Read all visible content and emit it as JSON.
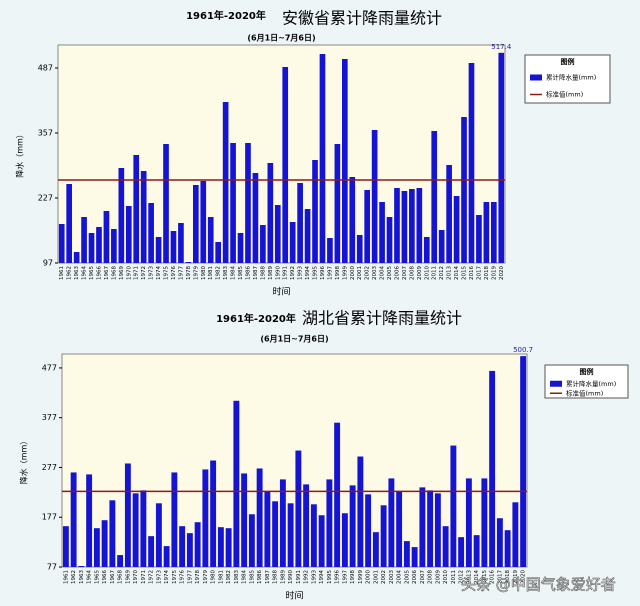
{
  "chart_data": [
    {
      "type": "bar",
      "period_label": "1961年-2020年",
      "title": "安徽省累计降雨量统计",
      "subtitle": "(6月1日~7月6日)",
      "y_label": "降水（mm）",
      "x_label": "时间",
      "legend_title": "图例",
      "categories": [
        "1961",
        "1962",
        "1963",
        "1964",
        "1965",
        "1966",
        "1967",
        "1968",
        "1969",
        "1970",
        "1971",
        "1972",
        "1973",
        "1974",
        "1975",
        "1976",
        "1977",
        "1978",
        "1979",
        "1980",
        "1981",
        "1982",
        "1983",
        "1984",
        "1985",
        "1986",
        "1987",
        "1988",
        "1989",
        "1990",
        "1991",
        "1992",
        "1993",
        "1994",
        "1995",
        "1996",
        "1997",
        "1998",
        "1999",
        "2000",
        "2001",
        "2002",
        "2003",
        "2004",
        "2005",
        "2006",
        "2007",
        "2008",
        "2009",
        "2010",
        "2011",
        "2012",
        "2013",
        "2014",
        "2015",
        "2016",
        "2017",
        "2018",
        "2019",
        "2020"
      ],
      "series": [
        {
          "name": "累计降水量(mm)",
          "color": "#1414d2",
          "values": [
            175,
            255,
            119,
            189,
            157,
            169,
            201,
            165,
            287,
            211,
            313,
            281,
            217,
            149,
            335,
            161,
            177,
            99,
            253,
            261,
            189,
            139,
            419,
            337,
            157,
            337,
            277,
            173,
            297,
            213,
            489,
            179,
            257,
            205,
            303,
            515,
            147,
            335,
            505,
            269,
            153,
            243,
            363,
            219,
            189,
            247,
            241,
            245,
            247,
            149,
            361,
            163,
            293,
            231,
            389,
            497,
            193,
            219,
            219,
            517.4
          ]
        }
      ],
      "reference": {
        "name": "标准值(mm)",
        "value": 263,
        "color": "#8b1a1a"
      },
      "ylim": [
        97,
        533
      ],
      "yticks": [
        97,
        227,
        357,
        487
      ]
    },
    {
      "type": "bar",
      "period_label": "1961年-2020年",
      "title": "湖北省累计降雨量统计",
      "subtitle": "(6月1日~7月6日)",
      "y_label": "降水（mm）",
      "x_label": "时间",
      "legend_title": "图例",
      "categories": [
        "1961",
        "1962",
        "1963",
        "1964",
        "1965",
        "1966",
        "1967",
        "1968",
        "1969",
        "1970",
        "1971",
        "1972",
        "1973",
        "1974",
        "1975",
        "1976",
        "1977",
        "1978",
        "1979",
        "1980",
        "1981",
        "1982",
        "1983",
        "1984",
        "1985",
        "1986",
        "1987",
        "1988",
        "1989",
        "1990",
        "1991",
        "1992",
        "1993",
        "1994",
        "1995",
        "1996",
        "1997",
        "1998",
        "1999",
        "2000",
        "2001",
        "2002",
        "2003",
        "2004",
        "2005",
        "2006",
        "2007",
        "2008",
        "2009",
        "2010",
        "2011",
        "2012",
        "2013",
        "2014",
        "2015",
        "2016",
        "2017",
        "2018",
        "2019",
        "2020"
      ],
      "series": [
        {
          "name": "累计降水量(mm)",
          "color": "#1414d2",
          "values": [
            159,
            267,
            79,
            263,
            155,
            171,
            211,
            101,
            285,
            225,
            231,
            139,
            205,
            119,
            267,
            159,
            145,
            167,
            273,
            291,
            157,
            155,
            411,
            265,
            183,
            275,
            229,
            209,
            253,
            205,
            311,
            243,
            203,
            181,
            253,
            367,
            185,
            241,
            299,
            223,
            147,
            201,
            255,
            229,
            129,
            117,
            237,
            231,
            225,
            159,
            321,
            137,
            255,
            141,
            255,
            471,
            175,
            151,
            207,
            500.7
          ]
        }
      ],
      "reference": {
        "name": "标准值(mm)",
        "value": 229,
        "color": "#8b1a1a"
      },
      "ylim": [
        77,
        505
      ],
      "yticks": [
        77,
        177,
        277,
        377,
        477
      ]
    }
  ],
  "watermark": "头条 @中国气象爱好者"
}
